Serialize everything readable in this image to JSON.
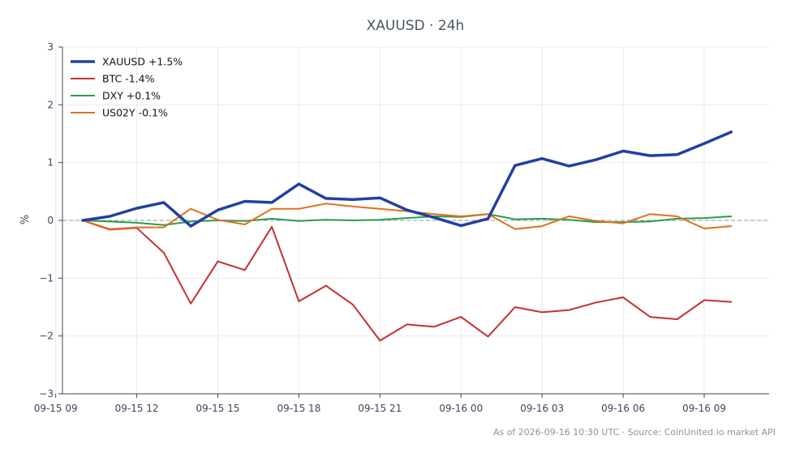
{
  "chart_data": {
    "type": "line",
    "title": "XAUUSD · 24h",
    "xlabel": "",
    "ylabel": "%",
    "ylim": [
      -3,
      3
    ],
    "yticks": [
      3,
      2,
      1,
      0,
      -1,
      -2,
      -3
    ],
    "ytick_labels": [
      "3",
      "2",
      "1",
      "0",
      "−1",
      "−2",
      "−3"
    ],
    "xlim": [
      9.25,
      35.4
    ],
    "xtick_positions": [
      9,
      12,
      15,
      18,
      21,
      24,
      27,
      30,
      33
    ],
    "xtick_labels": [
      "09-15 09",
      "09-15 12",
      "09-15 15",
      "09-15 18",
      "09-15 21",
      "09-16 00",
      "09-16 03",
      "09-16 06",
      "09-16 09"
    ],
    "x": [
      10,
      11,
      12,
      13,
      14,
      15,
      16,
      17,
      18,
      19,
      20,
      21,
      22,
      23,
      24,
      25,
      26,
      27,
      28,
      29,
      30,
      31,
      32,
      33,
      34
    ],
    "grid": true,
    "zero_line": true,
    "legend_position": "top-left",
    "series": [
      {
        "name": "XAUUSD +1.5%",
        "color": "#2340a0",
        "emphasis": true,
        "values": [
          0.0,
          0.07,
          0.21,
          0.31,
          -0.1,
          0.18,
          0.33,
          0.31,
          0.63,
          0.38,
          0.36,
          0.39,
          0.18,
          0.05,
          -0.09,
          0.03,
          0.95,
          1.07,
          0.94,
          1.05,
          1.2,
          1.12,
          1.14,
          1.33,
          1.53
        ]
      },
      {
        "name": "BTC -1.4%",
        "color": "#c53030",
        "values": [
          0.0,
          -0.16,
          -0.13,
          -0.56,
          -1.44,
          -0.71,
          -0.86,
          -0.11,
          -1.4,
          -1.13,
          -1.46,
          -2.08,
          -1.8,
          -1.84,
          -1.67,
          -2.01,
          -1.5,
          -1.59,
          -1.55,
          -1.42,
          -1.33,
          -1.67,
          -1.71,
          -1.38,
          -1.41
        ]
      },
      {
        "name": "DXY +0.1%",
        "color": "#2a9d4a",
        "values": [
          0.0,
          -0.02,
          -0.04,
          -0.08,
          -0.02,
          0.0,
          -0.01,
          0.03,
          -0.01,
          0.01,
          0.0,
          0.01,
          0.04,
          0.07,
          0.06,
          0.11,
          0.02,
          0.03,
          0.01,
          -0.03,
          -0.03,
          -0.02,
          0.03,
          0.04,
          0.07
        ]
      },
      {
        "name": "US02Y -0.1%",
        "color": "#e0701c",
        "values": [
          0.0,
          -0.15,
          -0.12,
          -0.12,
          0.2,
          0.01,
          -0.07,
          0.2,
          0.2,
          0.29,
          0.24,
          0.2,
          0.16,
          0.11,
          0.07,
          0.11,
          -0.15,
          -0.1,
          0.07,
          -0.01,
          -0.05,
          0.11,
          0.07,
          -0.14,
          -0.1
        ]
      }
    ]
  },
  "footer": "As of 2026-09-16 10:30 UTC · Source: CoinUnited.io market API"
}
